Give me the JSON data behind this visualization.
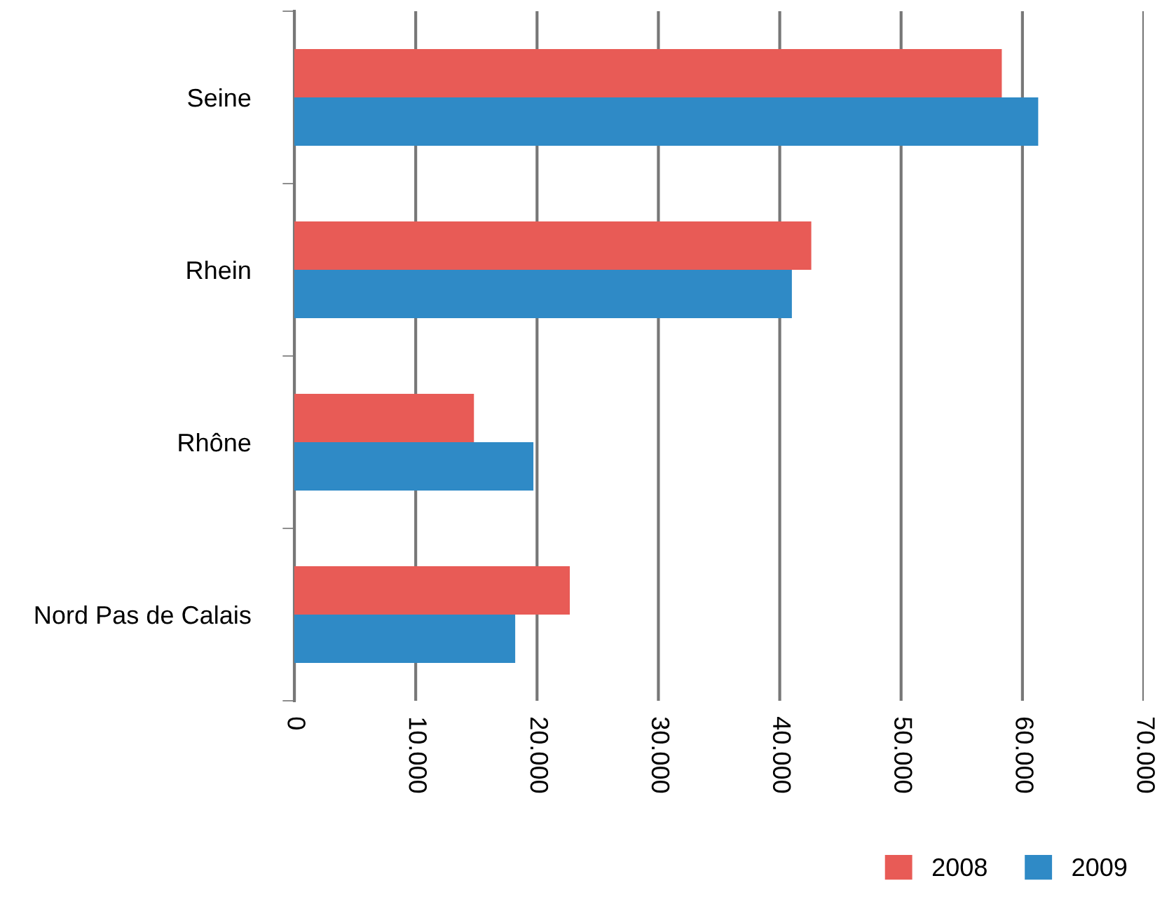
{
  "chart_data": {
    "type": "bar",
    "orientation": "horizontal",
    "categories": [
      "Seine",
      "Rhein",
      "Rhône",
      "Nord Pas de Calais"
    ],
    "series": [
      {
        "name": "2008",
        "color": "#e85b56",
        "values": [
          58300,
          42600,
          14800,
          22700
        ]
      },
      {
        "name": "2009",
        "color": "#2f8ac6",
        "values": [
          61300,
          41000,
          19700,
          18200
        ]
      }
    ],
    "xlim": [
      0,
      70000
    ],
    "xticks": [
      0,
      {
        "value": 10000,
        "label": "10.000"
      },
      {
        "value": 20000,
        "label": "20.000"
      },
      {
        "value": 30000,
        "label": "30.000"
      },
      {
        "value": 40000,
        "label": "40.000"
      },
      {
        "value": 50000,
        "label": "50.000"
      },
      {
        "value": 60000,
        "label": "60.000"
      },
      {
        "value": 70000,
        "label": "70.000"
      }
    ],
    "grid": "x",
    "legend": "bottom right"
  }
}
